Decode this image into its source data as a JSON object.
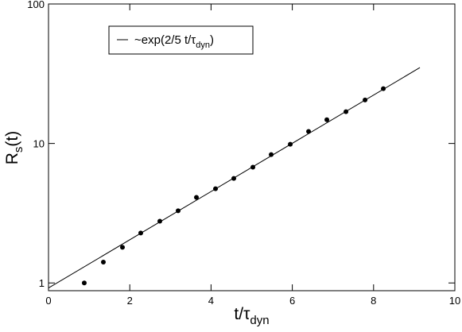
{
  "chart_data": {
    "type": "scatter",
    "x_label": [
      "t/τ",
      "dyn"
    ],
    "y_label": [
      "R",
      "s",
      "(t)"
    ],
    "xlim": [
      0,
      10
    ],
    "xticks": [
      0,
      2,
      4,
      6,
      8,
      10
    ],
    "ylim": [
      0.88,
      100
    ],
    "yticks": [
      1,
      10,
      100
    ],
    "y_scale": "log",
    "legend": "upper left",
    "series": [
      {
        "type": "line",
        "name": [
          "~exp(2/5 t/τ",
          "dyn",
          ")"
        ],
        "color": "#000000",
        "x": [
          0,
          9.14
        ],
        "values": [
          0.92,
          35
        ]
      },
      {
        "type": "scatter",
        "color": "#000000",
        "x": [
          0.88,
          1.35,
          1.82,
          2.27,
          2.74,
          3.19,
          3.64,
          4.11,
          4.56,
          5.03,
          5.48,
          5.95,
          6.4,
          6.85,
          7.32,
          7.79,
          8.24
        ],
        "values": [
          1.0,
          1.41,
          1.8,
          2.28,
          2.77,
          3.29,
          4.11,
          4.74,
          5.62,
          6.76,
          8.32,
          9.87,
          12.2,
          14.8,
          16.9,
          20.5,
          24.7
        ]
      }
    ]
  }
}
